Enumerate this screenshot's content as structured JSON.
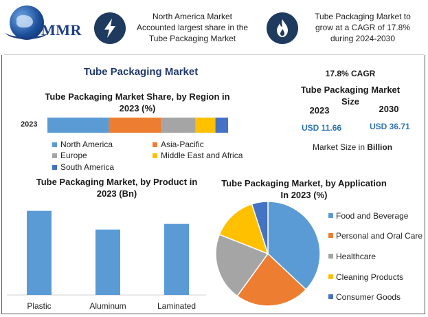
{
  "header": {
    "logo_text": "MMR",
    "box1": [
      "North America Market",
      "Accounted largest share in the",
      "Tube Packaging Market"
    ],
    "box2": [
      "Tube Packaging Market to",
      "grow at a CAGR of 17.8%",
      "during 2024-2030"
    ],
    "icon1": "lightning-icon",
    "icon2": "flame-icon"
  },
  "main_title": "Tube Packaging Market",
  "stats": {
    "cagr": "17.8% CAGR",
    "size_title": [
      "Tube Packaging Market",
      "Size"
    ],
    "year_start": "2023",
    "year_end": "2030",
    "value_start": "USD 11.66",
    "value_end": "USD 36.71",
    "unit_prefix": "Market Size in ",
    "unit_bold": "Billion"
  },
  "colors": {
    "north_america": "#5b9bd5",
    "asia_pacific": "#ed7d31",
    "europe": "#a5a5a5",
    "mea": "#ffc000",
    "south_america": "#4472c4"
  },
  "chart_data": [
    {
      "type": "bar",
      "orientation": "horizontal-stacked",
      "title": [
        "Tube Packaging Market Share, by Region in",
        "2023 (%)"
      ],
      "categories": [
        "2023"
      ],
      "series": [
        {
          "name": "North America",
          "values": [
            34
          ]
        },
        {
          "name": "Asia-Pacific",
          "values": [
            29
          ]
        },
        {
          "name": "Europe",
          "values": [
            19
          ]
        },
        {
          "name": "Middle East and Africa",
          "values": [
            11
          ]
        },
        {
          "name": "South America",
          "values": [
            7
          ]
        }
      ],
      "xlim": [
        0,
        100
      ],
      "grid": false,
      "legend": "bottom"
    },
    {
      "type": "bar",
      "title": [
        "Tube Packaging Market, by Product in",
        "2023 (Bn)"
      ],
      "categories": [
        "Plastic",
        "Aluminum",
        "Laminated"
      ],
      "values": [
        4.5,
        3.5,
        3.8
      ],
      "ylim": [
        0,
        5
      ],
      "grid": false
    },
    {
      "type": "pie",
      "title": [
        "Tube Packaging Market, by Application",
        "In 2023 (%)"
      ],
      "categories": [
        "Food and Beverage",
        "Personal and Oral Care",
        "Healthcare",
        "Cleaning Products",
        "Consumer Goods"
      ],
      "values": [
        37,
        23,
        21,
        14,
        5
      ],
      "legend": "right"
    }
  ]
}
